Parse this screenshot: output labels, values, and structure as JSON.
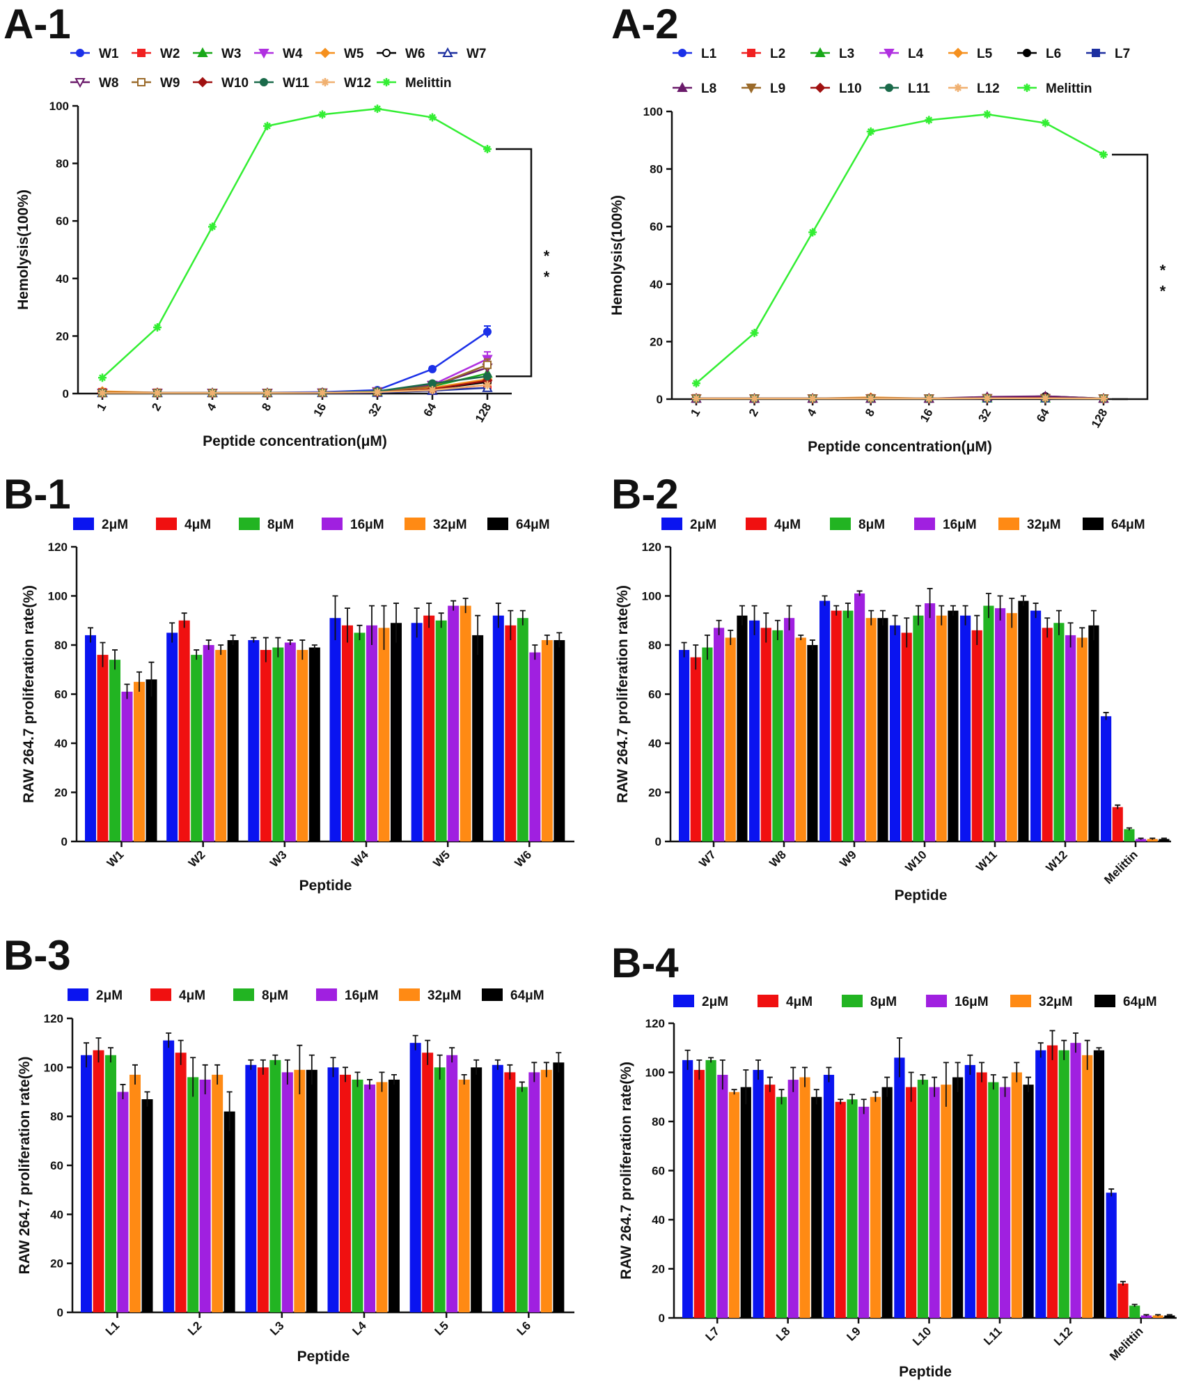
{
  "colors": {
    "conc": [
      "#0a14f0",
      "#f01010",
      "#22b422",
      "#a020e0",
      "#ff8a14",
      "#000000"
    ],
    "line": [
      "#1b30e8",
      "#f02020",
      "#18a818",
      "#b030e0",
      "#f5901e",
      "#000000",
      "#1c2fa0",
      "#6a1a6a",
      "#9a6a2a",
      "#a01010",
      "#1a6a4a",
      "#f0b070",
      "#33ee33"
    ]
  },
  "chart_data": [
    {
      "id": "A-1",
      "type": "line",
      "xlabel": "Peptide concentration(μM)",
      "ylabel": "Hemolysis(100%)",
      "categories": [
        "1",
        "2",
        "4",
        "8",
        "16",
        "32",
        "64",
        "128"
      ],
      "ylim": [
        0,
        100
      ],
      "yticks": [
        0,
        20,
        40,
        60,
        80,
        100
      ],
      "significance": "* *",
      "series": [
        {
          "name": "W1",
          "values": [
            0.2,
            0.2,
            0.2,
            0.3,
            0.5,
            1.2,
            8.5,
            21.5
          ],
          "err": [
            0,
            0,
            0,
            0,
            0,
            0,
            0.8,
            2
          ]
        },
        {
          "name": "W2",
          "values": [
            0.5,
            0.3,
            0.2,
            0.2,
            0.3,
            0.5,
            1.0,
            3.0
          ],
          "err": [
            0,
            0,
            0,
            0,
            0,
            0,
            0,
            0
          ]
        },
        {
          "name": "W3",
          "values": [
            0.2,
            0.2,
            0.2,
            0.2,
            0.3,
            0.6,
            2.5,
            7.0
          ],
          "err": [
            0,
            0,
            0,
            0,
            0,
            0,
            0,
            0
          ]
        },
        {
          "name": "W4",
          "values": [
            0.2,
            0.2,
            0.2,
            0.2,
            0.3,
            0.8,
            3.0,
            12.0
          ],
          "err": [
            0,
            0,
            0,
            0,
            0,
            0,
            0,
            2.5
          ]
        },
        {
          "name": "W5",
          "values": [
            0.8,
            0.3,
            0.2,
            0.2,
            0.3,
            0.5,
            2.0,
            5.0
          ],
          "err": [
            0,
            0,
            0,
            0,
            0,
            0,
            0,
            0
          ]
        },
        {
          "name": "W6",
          "values": [
            0.2,
            0.2,
            0.2,
            0.2,
            0.3,
            0.5,
            1.5,
            4.0
          ],
          "err": [
            0,
            0,
            0,
            0,
            0,
            0,
            0,
            0
          ]
        },
        {
          "name": "W7",
          "values": [
            0.2,
            0.2,
            0.2,
            0.2,
            0.2,
            0.3,
            1.0,
            2.0
          ],
          "err": [
            0,
            0,
            0,
            0,
            0,
            0,
            0,
            0
          ]
        },
        {
          "name": "W8",
          "values": [
            0.2,
            0.2,
            0.2,
            0.2,
            0.3,
            0.6,
            2.8,
            9.0
          ],
          "err": [
            0,
            0,
            0,
            0,
            0,
            0,
            0,
            0
          ]
        },
        {
          "name": "W9",
          "values": [
            0.2,
            0.2,
            0.2,
            0.2,
            0.3,
            0.6,
            2.5,
            10.0
          ],
          "err": [
            0,
            0,
            0,
            0,
            0,
            0,
            0,
            2
          ]
        },
        {
          "name": "W10",
          "values": [
            0.2,
            0.2,
            0.2,
            0.2,
            0.3,
            0.5,
            1.5,
            4.5
          ],
          "err": [
            0,
            0,
            0,
            0,
            0,
            0,
            0,
            0
          ]
        },
        {
          "name": "W11",
          "values": [
            0.2,
            0.2,
            0.2,
            0.2,
            0.3,
            0.8,
            3.5,
            6.0
          ],
          "err": [
            0,
            0,
            0,
            0,
            0,
            0,
            0,
            0
          ]
        },
        {
          "name": "W12",
          "values": [
            0.2,
            0.2,
            0.2,
            0.2,
            0.3,
            0.5,
            1.2,
            3.0
          ],
          "err": [
            0,
            0,
            0,
            0,
            0,
            0,
            0,
            0
          ]
        },
        {
          "name": "Melittin",
          "values": [
            5.5,
            23,
            58,
            93,
            97,
            99,
            96,
            85
          ],
          "err": [
            0,
            0,
            0,
            0,
            0,
            0,
            0,
            0
          ]
        }
      ]
    },
    {
      "id": "A-2",
      "type": "line",
      "xlabel": "Peptide concentration(μM)",
      "ylabel": "Hemolysis(100%)",
      "categories": [
        "1",
        "2",
        "4",
        "8",
        "16",
        "32",
        "64",
        "128"
      ],
      "ylim": [
        0,
        100
      ],
      "yticks": [
        0,
        20,
        40,
        60,
        80,
        100
      ],
      "significance": "* *",
      "series": [
        {
          "name": "L1",
          "values": [
            0.2,
            0.2,
            0.2,
            0.2,
            0.2,
            0.3,
            0.3,
            0.2
          ]
        },
        {
          "name": "L2",
          "values": [
            0.3,
            0.2,
            0.2,
            0.3,
            0.2,
            0.3,
            0.4,
            0.2
          ]
        },
        {
          "name": "L3",
          "values": [
            0.2,
            0.2,
            0.2,
            0.2,
            0.2,
            0.3,
            0.3,
            0.2
          ]
        },
        {
          "name": "L4",
          "values": [
            0.2,
            0.2,
            0.2,
            0.2,
            0.2,
            0.3,
            0.3,
            0.2
          ]
        },
        {
          "name": "L5",
          "values": [
            0.2,
            0.2,
            0.2,
            0.6,
            0.2,
            0.6,
            0.6,
            0.2
          ]
        },
        {
          "name": "L6",
          "values": [
            0.2,
            0.2,
            0.2,
            0.2,
            0.2,
            0.5,
            1.0,
            0.2
          ]
        },
        {
          "name": "L7",
          "values": [
            0.2,
            0.2,
            0.2,
            0.2,
            0.2,
            0.3,
            0.3,
            0.2
          ]
        },
        {
          "name": "L8",
          "values": [
            0.2,
            0.2,
            0.2,
            0.2,
            0.2,
            0.8,
            1.0,
            0.2
          ]
        },
        {
          "name": "L9",
          "values": [
            0.2,
            0.2,
            0.2,
            0.2,
            0.2,
            0.3,
            0.3,
            0.2
          ]
        },
        {
          "name": "L10",
          "values": [
            0.2,
            0.2,
            0.2,
            0.2,
            0.2,
            0.3,
            0.4,
            0.2
          ]
        },
        {
          "name": "L11",
          "values": [
            0.2,
            0.2,
            0.2,
            0.2,
            0.2,
            0.3,
            0.3,
            0.2
          ]
        },
        {
          "name": "L12",
          "values": [
            0.2,
            0.2,
            0.2,
            0.2,
            0.2,
            0.3,
            0.3,
            0.2
          ]
        },
        {
          "name": "Melittin",
          "values": [
            5.5,
            23,
            58,
            93,
            97,
            99,
            96,
            85
          ]
        }
      ]
    },
    {
      "id": "B-1",
      "type": "bar",
      "xlabel": "Peptide",
      "ylabel": "RAW 264.7 proliferation rate(%)",
      "legend": [
        "2μM",
        "4μM",
        "8μM",
        "16μM",
        "32μM",
        "64μM"
      ],
      "ylim": [
        0,
        120
      ],
      "yticks": [
        0,
        20,
        40,
        60,
        80,
        100,
        120
      ],
      "categories": [
        "W1",
        "W2",
        "W3",
        "W4",
        "W5",
        "W6"
      ],
      "values": [
        [
          84,
          76,
          74,
          61,
          65,
          66
        ],
        [
          85,
          90,
          76,
          80,
          78,
          82
        ],
        [
          82,
          78,
          79,
          81,
          78,
          79
        ],
        [
          91,
          88,
          85,
          88,
          87,
          89
        ],
        [
          89,
          92,
          90,
          96,
          96,
          84
        ],
        [
          92,
          88,
          91,
          77,
          82,
          82
        ]
      ],
      "err": [
        [
          3,
          5,
          4,
          3,
          4,
          7
        ],
        [
          4,
          3,
          2,
          2,
          2,
          2
        ],
        [
          1,
          5,
          4,
          1,
          4,
          1
        ],
        [
          9,
          7,
          3,
          8,
          9,
          8
        ],
        [
          6,
          5,
          3,
          2,
          3,
          8
        ],
        [
          5,
          6,
          3,
          3,
          2,
          3
        ]
      ]
    },
    {
      "id": "B-2",
      "type": "bar",
      "xlabel": "Peptide",
      "ylabel": "RAW 264.7 proliferation rate(%)",
      "legend": [
        "2μM",
        "4μM",
        "8μM",
        "16μM",
        "32μM",
        "64μM"
      ],
      "ylim": [
        0,
        120
      ],
      "yticks": [
        0,
        20,
        40,
        60,
        80,
        100,
        120
      ],
      "categories": [
        "W7",
        "W8",
        "W9",
        "W10",
        "W11",
        "W12",
        "Melittin"
      ],
      "values": [
        [
          78,
          75,
          79,
          87,
          83,
          92
        ],
        [
          90,
          87,
          86,
          91,
          83,
          80
        ],
        [
          98,
          94,
          94,
          101,
          91,
          91
        ],
        [
          88,
          85,
          92,
          97,
          92,
          94
        ],
        [
          92,
          86,
          96,
          95,
          93,
          98
        ],
        [
          94,
          87,
          89,
          84,
          83,
          88
        ],
        [
          51,
          14,
          5,
          1,
          1,
          1
        ]
      ],
      "err": [
        [
          3,
          5,
          5,
          3,
          3,
          4
        ],
        [
          6,
          6,
          4,
          5,
          1,
          2
        ],
        [
          2,
          2,
          3,
          1,
          3,
          3
        ],
        [
          4,
          6,
          4,
          6,
          4,
          2
        ],
        [
          4,
          6,
          5,
          5,
          6,
          2
        ],
        [
          3,
          4,
          5,
          5,
          4,
          6
        ],
        [
          1.5,
          0.8,
          0.5,
          0.3,
          0.3,
          0.3
        ]
      ]
    },
    {
      "id": "B-3",
      "type": "bar",
      "xlabel": "Peptide",
      "ylabel": "RAW 264.7 proliferation rate(%)",
      "legend": [
        "2μM",
        "4μM",
        "8μM",
        "16μM",
        "32μM",
        "64μM"
      ],
      "ylim": [
        0,
        120
      ],
      "yticks": [
        0,
        20,
        40,
        60,
        80,
        100,
        120
      ],
      "categories": [
        "L1",
        "L2",
        "L3",
        "L4",
        "L5",
        "L6"
      ],
      "values": [
        [
          105,
          107,
          105,
          90,
          97,
          87
        ],
        [
          111,
          106,
          96,
          95,
          97,
          82
        ],
        [
          101,
          100,
          103,
          98,
          99,
          99
        ],
        [
          100,
          97,
          95,
          93,
          94,
          95
        ],
        [
          110,
          106,
          100,
          105,
          95,
          100
        ],
        [
          101,
          98,
          92,
          98,
          99,
          102
        ]
      ],
      "err": [
        [
          5,
          5,
          3,
          3,
          4,
          3
        ],
        [
          3,
          5,
          8,
          6,
          4,
          8
        ],
        [
          2,
          3,
          2,
          5,
          10,
          6
        ],
        [
          4,
          3,
          3,
          2,
          4,
          2
        ],
        [
          3,
          5,
          5,
          3,
          2,
          3
        ],
        [
          2,
          3,
          2,
          4,
          3,
          4
        ]
      ]
    },
    {
      "id": "B-4",
      "type": "bar",
      "xlabel": "Peptide",
      "ylabel": "RAW 264.7 proliferation rate(%)",
      "legend": [
        "2μM",
        "4μM",
        "8μM",
        "16μM",
        "32μM",
        "64μM"
      ],
      "ylim": [
        0,
        120
      ],
      "yticks": [
        0,
        20,
        40,
        60,
        80,
        100,
        120
      ],
      "categories": [
        "L7",
        "L8",
        "L9",
        "L10",
        "L11",
        "L12",
        "Melittin"
      ],
      "values": [
        [
          105,
          101,
          105,
          99,
          92,
          94
        ],
        [
          101,
          95,
          90,
          97,
          98,
          90
        ],
        [
          99,
          88,
          89,
          86,
          90,
          94
        ],
        [
          106,
          94,
          97,
          94,
          95,
          98
        ],
        [
          103,
          100,
          96,
          94,
          100,
          95
        ],
        [
          109,
          111,
          109,
          112,
          107,
          109
        ],
        [
          51,
          14,
          5,
          1,
          1,
          1
        ]
      ],
      "err": [
        [
          4,
          4,
          1,
          6,
          1,
          7
        ],
        [
          4,
          3,
          3,
          5,
          4,
          3
        ],
        [
          3,
          1,
          2,
          3,
          2,
          4
        ],
        [
          8,
          6,
          2,
          4,
          9,
          6
        ],
        [
          4,
          4,
          3,
          4,
          4,
          3
        ],
        [
          3,
          6,
          4,
          4,
          6,
          1
        ],
        [
          1.5,
          0.8,
          0.5,
          0.3,
          0.3,
          0.3
        ]
      ]
    }
  ]
}
